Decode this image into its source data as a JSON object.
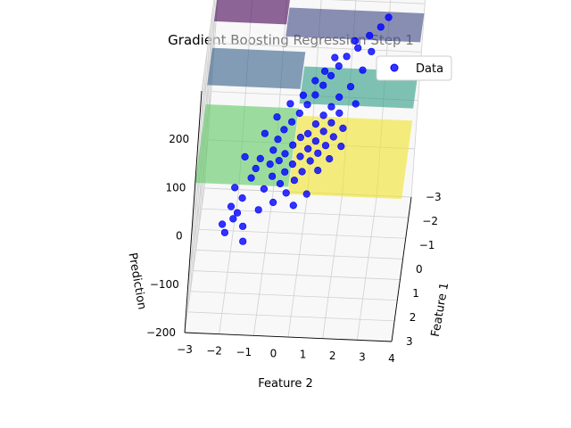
{
  "chart_data": {
    "type": "scatter",
    "subtype": "3d-scatter-with-surface",
    "title": "Gradient Boosting Regression Step 1",
    "xlabel": "Feature 1",
    "ylabel": "Feature 2",
    "zlabel": "Prediction",
    "xlim": [
      -3,
      3
    ],
    "ylim": [
      -3,
      4
    ],
    "zlim": [
      -200,
      300
    ],
    "x_ticks": [
      "−3",
      "−2",
      "−1",
      "0",
      "1",
      "2",
      "3"
    ],
    "y_ticks": [
      "−3",
      "−2",
      "−1",
      "0",
      "1",
      "2",
      "3",
      "4"
    ],
    "z_ticks": [
      "−200",
      "−100",
      "0",
      "100",
      "200"
    ],
    "grid": true,
    "legend": {
      "placement": "top-right",
      "entries": [
        "Data"
      ]
    },
    "colors": {
      "data": "#0000ff",
      "surface_colormap": "viridis"
    },
    "series": [
      {
        "name": "Data",
        "points": [
          [
            -1.9,
            -1.2,
            -38
          ],
          [
            -1.7,
            -0.6,
            -20
          ],
          [
            -1.5,
            -0.2,
            5
          ],
          [
            -1.4,
            0.1,
            12
          ],
          [
            -1.3,
            0.4,
            20
          ],
          [
            -1.2,
            -0.9,
            -30
          ],
          [
            -1.1,
            -0.4,
            -8
          ],
          [
            -1.0,
            0.2,
            18
          ],
          [
            -0.95,
            0.6,
            30
          ],
          [
            -0.9,
            -0.1,
            6
          ],
          [
            -0.85,
            0.9,
            40
          ],
          [
            -0.8,
            -0.7,
            -22
          ],
          [
            -0.75,
            0.3,
            22
          ],
          [
            -0.7,
            1.1,
            52
          ],
          [
            -0.65,
            -0.3,
            0
          ],
          [
            -0.6,
            0.5,
            28
          ],
          [
            -0.55,
            0.0,
            12
          ],
          [
            -0.5,
            1.3,
            60
          ],
          [
            -0.45,
            -0.5,
            -10
          ],
          [
            -0.4,
            0.7,
            38
          ],
          [
            -0.35,
            0.2,
            20
          ],
          [
            -0.3,
            1.5,
            70
          ],
          [
            -0.25,
            -0.2,
            4
          ],
          [
            -0.2,
            0.9,
            46
          ],
          [
            -0.15,
            0.4,
            28
          ],
          [
            -0.1,
            1.7,
            80
          ],
          [
            -0.05,
            0.0,
            14
          ],
          [
            0.0,
            1.0,
            50
          ],
          [
            0.05,
            0.6,
            36
          ],
          [
            0.1,
            1.9,
            92
          ],
          [
            0.15,
            0.3,
            24
          ],
          [
            0.2,
            1.2,
            62
          ],
          [
            0.25,
            0.8,
            44
          ],
          [
            0.3,
            2.1,
            104
          ],
          [
            0.35,
            0.5,
            32
          ],
          [
            0.4,
            1.4,
            72
          ],
          [
            0.45,
            1.0,
            56
          ],
          [
            0.5,
            2.3,
            116
          ],
          [
            0.55,
            0.7,
            40
          ],
          [
            0.6,
            1.6,
            82
          ],
          [
            0.65,
            1.2,
            66
          ],
          [
            0.7,
            2.5,
            128
          ],
          [
            0.75,
            0.9,
            50
          ],
          [
            0.8,
            1.8,
            94
          ],
          [
            0.85,
            1.4,
            78
          ],
          [
            0.9,
            2.7,
            140
          ],
          [
            1.0,
            1.1,
            60
          ],
          [
            1.1,
            2.0,
            108
          ],
          [
            1.2,
            2.9,
            150
          ],
          [
            1.3,
            1.6,
            90
          ],
          [
            1.4,
            2.4,
            126
          ],
          [
            1.5,
            3.1,
            168
          ],
          [
            1.6,
            2.8,
            148
          ],
          [
            1.8,
            3.3,
            178
          ],
          [
            2.0,
            3.5,
            190
          ],
          [
            -2.1,
            -1.6,
            -50
          ],
          [
            -1.8,
            -1.0,
            -34
          ],
          [
            -1.6,
            -1.4,
            -44
          ],
          [
            -2.0,
            -0.8,
            -30
          ],
          [
            -1.75,
            0.5,
            18
          ],
          [
            -1.55,
            -1.8,
            -58
          ],
          [
            -0.25,
            2.0,
            86
          ],
          [
            0.05,
            2.4,
            100
          ],
          [
            0.3,
            2.6,
            112
          ],
          [
            0.55,
            2.9,
            128
          ],
          [
            -0.6,
            1.8,
            76
          ],
          [
            1.1,
            3.0,
            160
          ],
          [
            -2.2,
            -1.3,
            -46
          ],
          [
            -1.95,
            -0.3,
            -12
          ],
          [
            -1.25,
            1.2,
            38
          ],
          [
            -0.95,
            1.6,
            56
          ],
          [
            0.4,
            0.0,
            18
          ],
          [
            0.7,
            0.3,
            30
          ],
          [
            1.0,
            0.6,
            44
          ],
          [
            -0.2,
            -0.9,
            -18
          ],
          [
            0.15,
            -0.6,
            -6
          ]
        ]
      }
    ]
  }
}
